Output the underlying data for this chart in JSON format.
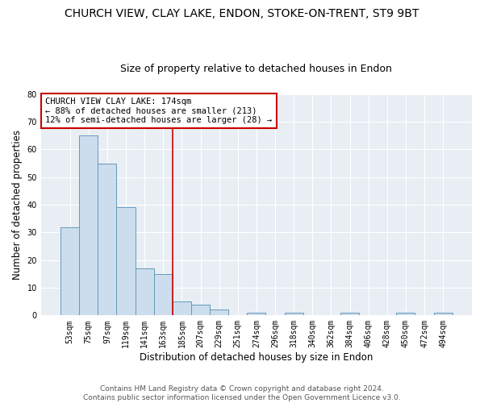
{
  "title": "CHURCH VIEW, CLAY LAKE, ENDON, STOKE-ON-TRENT, ST9 9BT",
  "subtitle": "Size of property relative to detached houses in Endon",
  "xlabel": "Distribution of detached houses by size in Endon",
  "ylabel": "Number of detached properties",
  "footer_line1": "Contains HM Land Registry data © Crown copyright and database right 2024.",
  "footer_line2": "Contains public sector information licensed under the Open Government Licence v3.0.",
  "bin_labels": [
    "53sqm",
    "75sqm",
    "97sqm",
    "119sqm",
    "141sqm",
    "163sqm",
    "185sqm",
    "207sqm",
    "229sqm",
    "251sqm",
    "274sqm",
    "296sqm",
    "318sqm",
    "340sqm",
    "362sqm",
    "384sqm",
    "406sqm",
    "428sqm",
    "450sqm",
    "472sqm",
    "494sqm"
  ],
  "bar_values": [
    32,
    65,
    55,
    39,
    17,
    15,
    5,
    4,
    2,
    0,
    1,
    0,
    1,
    0,
    0,
    1,
    0,
    0,
    1,
    0,
    1
  ],
  "bar_color": "#ccdded",
  "bar_edge_color": "#6699bb",
  "ylim": [
    0,
    80
  ],
  "yticks": [
    0,
    10,
    20,
    30,
    40,
    50,
    60,
    70,
    80
  ],
  "property_line_x": 5.5,
  "property_line_color": "#cc0000",
  "annotation_title": "CHURCH VIEW CLAY LAKE: 174sqm",
  "annotation_line1": "← 88% of detached houses are smaller (213)",
  "annotation_line2": "12% of semi-detached houses are larger (28) →",
  "annotation_box_color": "#cc0000",
  "bg_color": "#ffffff",
  "plot_bg_color": "#e8eef4",
  "grid_color": "#ffffff",
  "title_fontsize": 10,
  "subtitle_fontsize": 9,
  "label_fontsize": 8.5,
  "tick_fontsize": 7,
  "footer_fontsize": 6.5,
  "annotation_fontsize": 7.5
}
